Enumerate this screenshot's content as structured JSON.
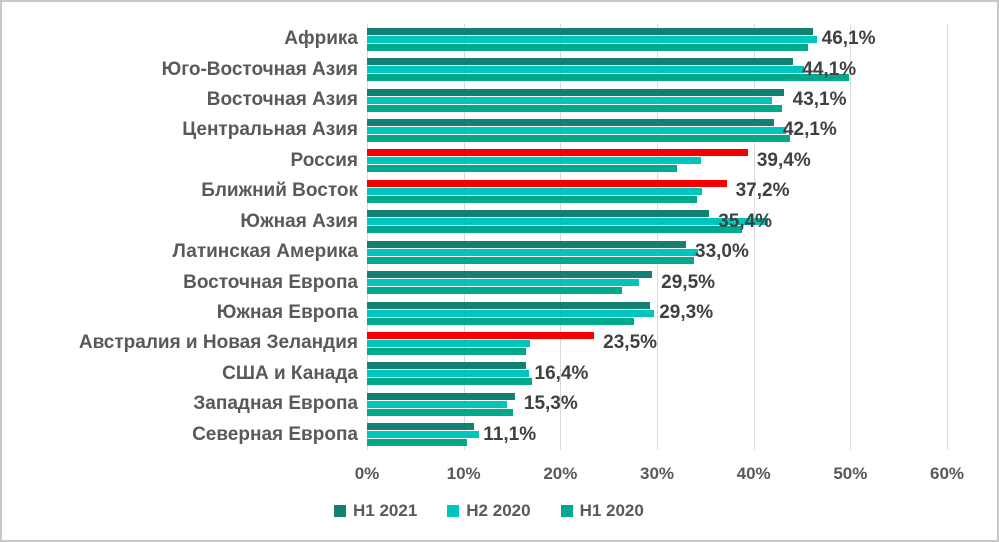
{
  "chart_data": {
    "type": "bar",
    "orientation": "horizontal",
    "title": "",
    "xlabel": "",
    "ylabel": "",
    "unit": "%",
    "xlim": [
      0,
      60
    ],
    "grid": true,
    "legend_position": "bottom",
    "x_ticks": [
      "0%",
      "10%",
      "20%",
      "30%",
      "40%",
      "50%",
      "60%"
    ],
    "categories": [
      "Африка",
      "Юго-Восточная Азия",
      "Восточная Азия",
      "Центральная Азия",
      "Россия",
      "Ближний Восток",
      "Южная Азия",
      "Латинская Америка",
      "Восточная Европа",
      "Южная Европа",
      "Австралия и Новая Зеландия",
      "США и Канада",
      "Западная Европа",
      "Северная Европа"
    ],
    "series": [
      {
        "name": "H1 2021",
        "color_key": "h1_2021",
        "values": [
          46.1,
          44.1,
          43.1,
          42.1,
          39.4,
          37.2,
          35.4,
          33.0,
          29.5,
          29.3,
          23.5,
          16.4,
          15.3,
          11.1
        ],
        "data_labels": [
          "46,1%",
          "44,1%",
          "43,1%",
          "42,1%",
          "39,4%",
          "37,2%",
          "35,4%",
          "33,0%",
          "29,5%",
          "29,3%",
          "23,5%",
          "16,4%",
          "15,3%",
          "11,1%"
        ]
      },
      {
        "name": "H2 2020",
        "color_key": "h2_2020",
        "values": [
          46.6,
          45.2,
          41.9,
          43.3,
          34.6,
          34.7,
          41.5,
          34.2,
          28.1,
          29.7,
          16.9,
          16.8,
          14.5,
          11.6
        ],
        "data_labels": []
      },
      {
        "name": "H1 2020",
        "color_key": "h1_2020",
        "values": [
          45.6,
          49.9,
          42.9,
          43.8,
          32.1,
          34.1,
          38.8,
          33.8,
          26.4,
          27.6,
          16.4,
          17.1,
          15.1,
          10.3
        ],
        "data_labels": []
      }
    ],
    "highlighted_categories": [
      "Россия",
      "Ближний Восток",
      "Австралия и Новая Зеландия"
    ]
  },
  "legend": {
    "items": [
      {
        "label": "H1 2021",
        "color_key": "h1_2021"
      },
      {
        "label": "H2 2020",
        "color_key": "h2_2020"
      },
      {
        "label": "H1 2020",
        "color_key": "h1_2020"
      }
    ]
  },
  "colors": {
    "h1_2021": "#128073",
    "h2_2020": "#00C5BC",
    "h1_2020": "#00A88C",
    "highlight": "#F50000",
    "grid": "#D9D9D9",
    "axis_text": "#595959",
    "category_text": "#595959",
    "data_label_text": "#404040",
    "background": "#FFFFFF",
    "border": "#C8C8C8"
  }
}
